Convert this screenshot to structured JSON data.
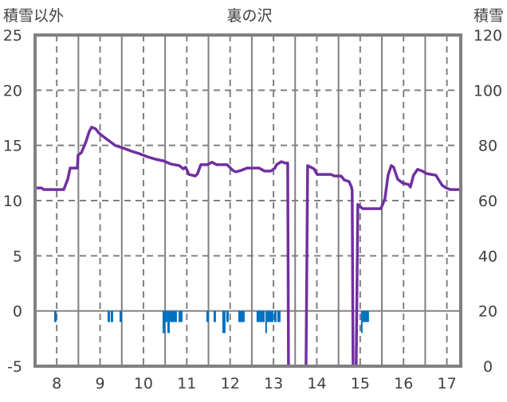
{
  "chart_data": {
    "type": "line",
    "title": "裏の沢",
    "ylabel_left": "積雪以外",
    "ylabel_right": "積雪",
    "xlabel": "",
    "xlim": [
      8.0,
      17.82
    ],
    "ylim_left": [
      -5,
      25
    ],
    "ylim_right": [
      0,
      120
    ],
    "y_ticks_left": [
      "25",
      "20",
      "15",
      "10",
      "5",
      "0",
      "-5"
    ],
    "y_ticks_right": [
      "120",
      "100",
      "80",
      "60",
      "40",
      "20",
      "0"
    ],
    "x_ticks": [
      "8",
      "9",
      "10",
      "11",
      "12",
      "13",
      "14",
      "15",
      "16",
      "17"
    ],
    "grid": true,
    "colors": {
      "snow_line": "#7030A0",
      "other_bars": "#0070C0",
      "grid": "#808080"
    },
    "series": [
      {
        "name": "積雪",
        "axis": "right",
        "type": "line",
        "points": [
          [
            8.0,
            64.6
          ],
          [
            8.147,
            64.6
          ],
          [
            8.202,
            64.0
          ],
          [
            8.662,
            64.0
          ],
          [
            8.754,
            67.8
          ],
          [
            8.809,
            71.8
          ],
          [
            8.974,
            71.8
          ],
          [
            8.993,
            76.5
          ],
          [
            9.066,
            77.3
          ],
          [
            9.176,
            81.4
          ],
          [
            9.25,
            85.1
          ],
          [
            9.305,
            86.6
          ],
          [
            9.397,
            86.0
          ],
          [
            9.471,
            84.5
          ],
          [
            9.581,
            83.1
          ],
          [
            9.71,
            81.6
          ],
          [
            9.857,
            79.9
          ],
          [
            10.04,
            79.0
          ],
          [
            10.224,
            77.9
          ],
          [
            10.408,
            77.0
          ],
          [
            10.592,
            75.9
          ],
          [
            10.776,
            75.0
          ],
          [
            10.96,
            74.4
          ],
          [
            11.143,
            73.2
          ],
          [
            11.327,
            72.7
          ],
          [
            11.419,
            71.5
          ],
          [
            11.474,
            72.1
          ],
          [
            11.548,
            69.5
          ],
          [
            11.695,
            68.9
          ],
          [
            11.75,
            69.8
          ],
          [
            11.824,
            73.0
          ],
          [
            11.971,
            73.0
          ],
          [
            12.081,
            73.9
          ],
          [
            12.191,
            73.0
          ],
          [
            12.43,
            73.0
          ],
          [
            12.559,
            71.0
          ],
          [
            12.632,
            70.4
          ],
          [
            12.761,
            71.0
          ],
          [
            12.89,
            71.8
          ],
          [
            13.165,
            71.8
          ],
          [
            13.294,
            70.7
          ],
          [
            13.441,
            70.7
          ],
          [
            13.533,
            71.8
          ],
          [
            13.57,
            73.0
          ],
          [
            13.68,
            74.1
          ],
          [
            13.772,
            73.6
          ],
          [
            13.827,
            73.6
          ],
          [
            13.846,
            0
          ],
          [
            14.25,
            0
          ],
          [
            14.287,
            72.7
          ],
          [
            14.36,
            72.1
          ],
          [
            14.434,
            71.5
          ],
          [
            14.507,
            69.5
          ],
          [
            14.82,
            69.5
          ],
          [
            14.912,
            68.9
          ],
          [
            15.059,
            68.9
          ],
          [
            15.132,
            67.5
          ],
          [
            15.243,
            66.9
          ],
          [
            15.298,
            64.9
          ],
          [
            15.316,
            63.5
          ],
          [
            15.335,
            0
          ],
          [
            15.408,
            0
          ],
          [
            15.445,
            58.6
          ],
          [
            15.555,
            57.1
          ],
          [
            15.978,
            57.1
          ],
          [
            16.07,
            60.6
          ],
          [
            16.143,
            69.2
          ],
          [
            16.217,
            72.7
          ],
          [
            16.272,
            72.1
          ],
          [
            16.364,
            67.8
          ],
          [
            16.474,
            66.4
          ],
          [
            16.621,
            65.8
          ],
          [
            16.658,
            64.9
          ],
          [
            16.732,
            69.2
          ],
          [
            16.824,
            71.3
          ],
          [
            16.934,
            70.7
          ],
          [
            17.026,
            69.8
          ],
          [
            17.246,
            69.2
          ],
          [
            17.301,
            67.8
          ],
          [
            17.393,
            65.5
          ],
          [
            17.485,
            64.6
          ],
          [
            17.577,
            64.0
          ],
          [
            17.816,
            64.0
          ]
        ]
      },
      {
        "name": "積雪以外",
        "axis": "left",
        "type": "bar",
        "bars": [
          {
            "start": 8.441,
            "end": 8.496,
            "value": -1
          },
          {
            "start": 9.673,
            "end": 9.728,
            "value": -1
          },
          {
            "start": 9.746,
            "end": 9.801,
            "value": -1
          },
          {
            "start": 9.949,
            "end": 10.004,
            "value": -1
          },
          {
            "start": 10.941,
            "end": 10.996,
            "value": -2
          },
          {
            "start": 10.996,
            "end": 11.051,
            "value": -1
          },
          {
            "start": 11.051,
            "end": 11.107,
            "value": -2
          },
          {
            "start": 11.107,
            "end": 11.272,
            "value": -1
          },
          {
            "start": 11.309,
            "end": 11.401,
            "value": -1
          },
          {
            "start": 11.952,
            "end": 12.007,
            "value": -1
          },
          {
            "start": 12.118,
            "end": 12.173,
            "value": -1
          },
          {
            "start": 12.32,
            "end": 12.393,
            "value": -2
          },
          {
            "start": 12.412,
            "end": 12.467,
            "value": -1
          },
          {
            "start": 12.688,
            "end": 12.835,
            "value": -1
          },
          {
            "start": 13.11,
            "end": 13.294,
            "value": -1
          },
          {
            "start": 13.312,
            "end": 13.349,
            "value": -2
          },
          {
            "start": 13.349,
            "end": 13.496,
            "value": -1
          },
          {
            "start": 13.515,
            "end": 13.57,
            "value": -1
          },
          {
            "start": 13.588,
            "end": 13.662,
            "value": -1
          },
          {
            "start": 15.518,
            "end": 15.555,
            "value": -2
          },
          {
            "start": 15.555,
            "end": 15.702,
            "value": -1
          }
        ]
      }
    ]
  }
}
